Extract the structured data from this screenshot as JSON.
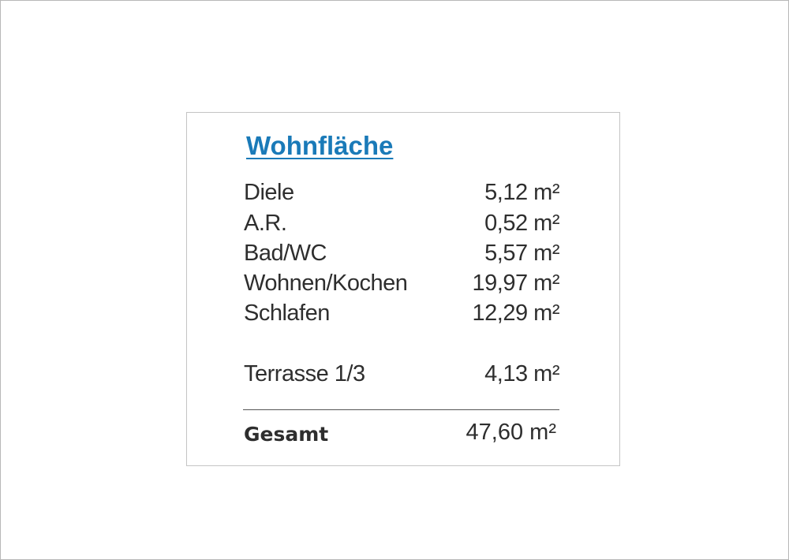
{
  "title": "Wohnfläche",
  "colors": {
    "title": "#1a7ab8",
    "text": "#2e2e2e"
  },
  "rooms": [
    {
      "label": "Diele",
      "value": "5,12 m²"
    },
    {
      "label": "A.R.",
      "value": "0,52 m²"
    },
    {
      "label": "Bad/WC",
      "value": "5,57 m²"
    },
    {
      "label": "Wohnen/Kochen",
      "value": "19,97 m²"
    },
    {
      "label": "Schlafen",
      "value": "12,29 m²"
    }
  ],
  "extra": {
    "label": "Terrasse 1/3",
    "value": "4,13 m²"
  },
  "total": {
    "label": "Gesamt",
    "value": "47,60 m²"
  }
}
